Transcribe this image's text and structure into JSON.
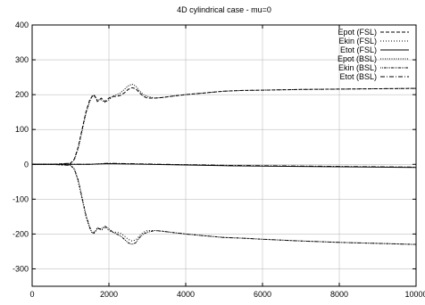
{
  "chart_data": {
    "type": "line",
    "title": "4D cylindrical case - mu=0",
    "xlabel": "",
    "ylabel": "",
    "xlim": [
      0,
      10000
    ],
    "ylim": [
      -350,
      400
    ],
    "xticks": [
      0,
      2000,
      4000,
      6000,
      8000,
      10000
    ],
    "yticks": [
      -300,
      -200,
      -100,
      0,
      100,
      200,
      300,
      400
    ],
    "grid": true,
    "legend_position": "top-right",
    "series": [
      {
        "name": "Epot (FSL)",
        "style": "dashed",
        "color": "#000000",
        "x": [
          0,
          500,
          1000,
          1100,
          1200,
          1300,
          1400,
          1500,
          1600,
          1650,
          1700,
          1800,
          1900,
          2000,
          2100,
          2200,
          2300,
          2400,
          2500,
          2600,
          2700,
          2800,
          2900,
          3000,
          3200,
          3400,
          3600,
          4000,
          4500,
          5000,
          5500,
          6000,
          7000,
          8000,
          9000,
          10000
        ],
        "y": [
          0,
          0,
          3,
          15,
          50,
          100,
          150,
          185,
          200,
          193,
          180,
          190,
          180,
          190,
          195,
          195,
          198,
          205,
          215,
          220,
          217,
          205,
          195,
          190,
          190,
          192,
          195,
          200,
          205,
          210,
          212,
          213,
          215,
          216,
          217,
          218
        ]
      },
      {
        "name": "Ekin (FSL)",
        "style": "dotted",
        "color": "#000000",
        "x": [
          0,
          500,
          1000,
          1100,
          1200,
          1300,
          1400,
          1500,
          1600,
          1650,
          1700,
          1800,
          1900,
          2000,
          2100,
          2200,
          2300,
          2400,
          2500,
          2600,
          2700,
          2800,
          2900,
          3000,
          3200,
          3400,
          3600,
          4000,
          4500,
          5000,
          5500,
          6000,
          7000,
          8000,
          9000,
          10000
        ],
        "y": [
          0,
          0,
          -3,
          -15,
          -50,
          -100,
          -150,
          -185,
          -200,
          -193,
          -180,
          -190,
          -180,
          -190,
          -195,
          -195,
          -198,
          -205,
          -215,
          -220,
          -217,
          -205,
          -195,
          -190,
          -190,
          -192,
          -195,
          -200,
          -205,
          -210,
          -212,
          -215,
          -220,
          -224,
          -227,
          -230
        ]
      },
      {
        "name": "Etot (FSL)",
        "style": "solid",
        "color": "#000000",
        "x": [
          0,
          1000,
          1500,
          2000,
          3000,
          4000,
          5000,
          6000,
          7000,
          8000,
          9000,
          10000
        ],
        "y": [
          0,
          0,
          0,
          2,
          0,
          -2,
          -4,
          -5,
          -6,
          -7,
          -8,
          -9
        ]
      },
      {
        "name": "Epot (BSL)",
        "style": "fine-dotted",
        "color": "#000000",
        "x": [
          0,
          500,
          1000,
          1100,
          1200,
          1300,
          1400,
          1500,
          1550,
          1600,
          1700,
          1800,
          1900,
          2000,
          2100,
          2200,
          2300,
          2400,
          2500,
          2600,
          2700,
          2800,
          2900,
          3000,
          3200,
          3400,
          3600,
          4000,
          4500,
          5000,
          5500,
          6000,
          7000,
          8000,
          9000,
          10000
        ],
        "y": [
          0,
          0,
          3,
          13,
          45,
          95,
          145,
          180,
          195,
          197,
          185,
          185,
          178,
          185,
          195,
          200,
          205,
          215,
          225,
          230,
          225,
          210,
          200,
          195,
          190,
          192,
          195,
          200,
          205,
          210,
          212,
          213,
          215,
          216,
          217,
          218
        ]
      },
      {
        "name": "Ekin (BSL)",
        "style": "dash-dot-dot",
        "color": "#000000",
        "x": [
          0,
          500,
          1000,
          1100,
          1200,
          1300,
          1400,
          1500,
          1550,
          1600,
          1700,
          1800,
          1900,
          2000,
          2100,
          2200,
          2300,
          2400,
          2500,
          2600,
          2700,
          2800,
          2900,
          3000,
          3200,
          3400,
          3600,
          4000,
          4500,
          5000,
          5500,
          6000,
          7000,
          8000,
          9000,
          10000
        ],
        "y": [
          0,
          0,
          -3,
          -13,
          -45,
          -95,
          -145,
          -180,
          -195,
          -197,
          -185,
          -185,
          -178,
          -185,
          -195,
          -200,
          -205,
          -215,
          -225,
          -230,
          -225,
          -210,
          -200,
          -195,
          -190,
          -192,
          -195,
          -200,
          -205,
          -210,
          -212,
          -215,
          -220,
          -224,
          -227,
          -230
        ]
      },
      {
        "name": "Etot (BSL)",
        "style": "dash-dot",
        "color": "#000000",
        "x": [
          0,
          1000,
          1500,
          2000,
          3000,
          4000,
          5000,
          6000,
          7000,
          8000,
          9000,
          10000
        ],
        "y": [
          0,
          0,
          0,
          3,
          1,
          -1,
          -3,
          -4,
          -5,
          -6,
          -7,
          -8
        ]
      }
    ]
  }
}
